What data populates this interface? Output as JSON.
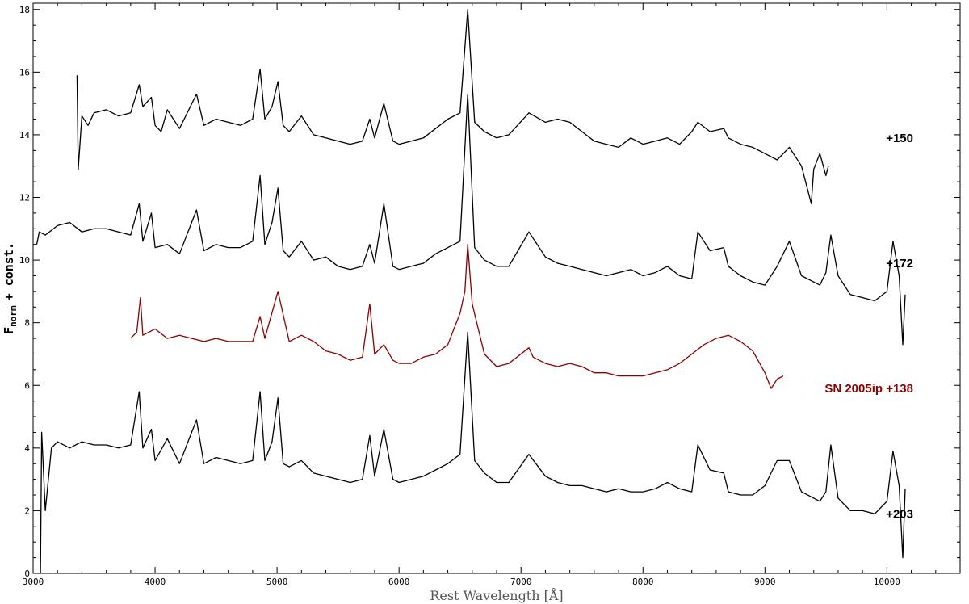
{
  "chart_data": {
    "type": "line",
    "xlabel": "Rest Wavelength [Å]",
    "ylabel_main": "F",
    "ylabel_sub": "norm",
    "ylabel_tail": "+ const.",
    "xlim": [
      3000,
      10600
    ],
    "ylim": [
      0,
      18.2
    ],
    "x_ticks": [
      3000,
      4000,
      5000,
      6000,
      7000,
      8000,
      9000,
      10000
    ],
    "y_ticks": [
      0,
      2,
      4,
      6,
      8,
      10,
      12,
      14,
      16,
      18
    ],
    "grid": false,
    "colors": {
      "black": "#000000",
      "comparison": "#8b0000"
    },
    "series": [
      {
        "name": "+150",
        "color": "#000000",
        "x": [
          3360,
          3370,
          3400,
          3450,
          3500,
          3600,
          3700,
          3800,
          3870,
          3900,
          3970,
          4000,
          4050,
          4100,
          4200,
          4340,
          4400,
          4500,
          4600,
          4700,
          4800,
          4861,
          4900,
          4959,
          5007,
          5050,
          5100,
          5200,
          5300,
          5400,
          5500,
          5600,
          5700,
          5760,
          5800,
          5876,
          5950,
          6000,
          6100,
          6200,
          6300,
          6400,
          6500,
          6563,
          6620,
          6700,
          6800,
          6900,
          7065,
          7200,
          7300,
          7400,
          7500,
          7600,
          7700,
          7800,
          7900,
          8000,
          8100,
          8200,
          8300,
          8400,
          8450,
          8550,
          8662,
          8700,
          8800,
          8900,
          9000,
          9100,
          9200,
          9300,
          9380,
          9400,
          9450,
          9500,
          9520
        ],
        "y": [
          15.9,
          12.9,
          14.6,
          14.3,
          14.7,
          14.8,
          14.6,
          14.7,
          15.6,
          14.9,
          15.2,
          14.3,
          14.1,
          14.8,
          14.2,
          15.3,
          14.3,
          14.5,
          14.4,
          14.3,
          14.5,
          16.1,
          14.5,
          14.9,
          15.7,
          14.3,
          14.1,
          14.6,
          14.0,
          13.9,
          13.8,
          13.7,
          13.8,
          14.5,
          13.9,
          15.0,
          13.8,
          13.7,
          13.8,
          13.9,
          14.2,
          14.5,
          14.7,
          18.0,
          14.4,
          14.1,
          13.9,
          14.0,
          14.7,
          14.4,
          14.5,
          14.4,
          14.1,
          13.8,
          13.7,
          13.6,
          13.9,
          13.7,
          13.8,
          13.9,
          13.7,
          14.1,
          14.4,
          14.1,
          14.2,
          13.9,
          13.7,
          13.6,
          13.4,
          13.2,
          13.6,
          13.0,
          11.8,
          12.9,
          13.4,
          12.7,
          13.0
        ]
      },
      {
        "name": "+172",
        "color": "#000000",
        "x": [
          3030,
          3050,
          3100,
          3200,
          3300,
          3400,
          3500,
          3600,
          3700,
          3800,
          3870,
          3900,
          3970,
          4000,
          4100,
          4200,
          4340,
          4400,
          4500,
          4600,
          4700,
          4800,
          4861,
          4900,
          4959,
          5007,
          5050,
          5100,
          5200,
          5300,
          5400,
          5500,
          5600,
          5700,
          5760,
          5800,
          5876,
          5950,
          6000,
          6100,
          6200,
          6300,
          6400,
          6500,
          6563,
          6620,
          6700,
          6800,
          6900,
          7065,
          7200,
          7300,
          7400,
          7500,
          7600,
          7700,
          7800,
          7900,
          8000,
          8100,
          8200,
          8300,
          8400,
          8450,
          8550,
          8662,
          8700,
          8800,
          8900,
          9000,
          9100,
          9200,
          9300,
          9400,
          9450,
          9500,
          9540,
          9600,
          9700,
          9800,
          9900,
          10000,
          10050,
          10100,
          10130,
          10150
        ],
        "y": [
          10.5,
          10.9,
          10.8,
          11.1,
          11.2,
          10.9,
          11.0,
          11.0,
          10.9,
          10.8,
          11.8,
          10.6,
          11.5,
          10.4,
          10.5,
          10.2,
          11.6,
          10.3,
          10.5,
          10.4,
          10.4,
          10.6,
          12.7,
          10.5,
          11.2,
          12.3,
          10.3,
          10.1,
          10.6,
          10.0,
          10.1,
          9.8,
          9.7,
          9.8,
          10.5,
          9.9,
          11.8,
          9.8,
          9.7,
          9.8,
          9.9,
          10.2,
          10.4,
          10.6,
          15.3,
          10.4,
          10.0,
          9.8,
          9.8,
          10.9,
          10.1,
          9.9,
          9.8,
          9.7,
          9.6,
          9.5,
          9.6,
          9.7,
          9.5,
          9.6,
          9.8,
          9.5,
          9.4,
          10.9,
          10.3,
          10.4,
          9.8,
          9.5,
          9.3,
          9.2,
          9.8,
          10.6,
          9.5,
          9.3,
          9.2,
          9.6,
          10.8,
          9.5,
          8.9,
          8.8,
          8.7,
          9.0,
          10.6,
          9.5,
          7.3,
          8.9
        ]
      },
      {
        "name": "SN 2005ip +138",
        "color": "#8b0000",
        "x": [
          3800,
          3850,
          3880,
          3900,
          4000,
          4100,
          4200,
          4300,
          4400,
          4500,
          4600,
          4700,
          4800,
          4861,
          4900,
          5007,
          5100,
          5200,
          5300,
          5400,
          5500,
          5600,
          5700,
          5760,
          5800,
          5876,
          5950,
          6000,
          6100,
          6200,
          6300,
          6400,
          6450,
          6500,
          6540,
          6563,
          6600,
          6650,
          6700,
          6800,
          6900,
          7065,
          7100,
          7200,
          7300,
          7400,
          7500,
          7600,
          7700,
          7800,
          7900,
          8000,
          8100,
          8200,
          8300,
          8400,
          8500,
          8600,
          8700,
          8800,
          8900,
          9000,
          9050,
          9100,
          9150
        ],
        "y": [
          7.5,
          7.7,
          8.8,
          7.6,
          7.8,
          7.5,
          7.6,
          7.5,
          7.4,
          7.5,
          7.4,
          7.4,
          7.4,
          8.2,
          7.5,
          9.0,
          7.4,
          7.6,
          7.4,
          7.1,
          7.0,
          6.8,
          6.9,
          8.6,
          7.0,
          7.3,
          6.8,
          6.7,
          6.7,
          6.9,
          7.0,
          7.3,
          7.8,
          8.3,
          9.0,
          10.5,
          8.6,
          7.8,
          7.0,
          6.6,
          6.7,
          7.2,
          6.9,
          6.7,
          6.6,
          6.7,
          6.6,
          6.4,
          6.4,
          6.3,
          6.3,
          6.3,
          6.4,
          6.5,
          6.7,
          7.0,
          7.3,
          7.5,
          7.6,
          7.4,
          7.1,
          6.4,
          5.9,
          6.2,
          6.3
        ]
      },
      {
        "name": "+203",
        "color": "#000000",
        "x": [
          3060,
          3070,
          3100,
          3150,
          3200,
          3300,
          3400,
          3500,
          3600,
          3700,
          3800,
          3870,
          3900,
          3970,
          4000,
          4100,
          4200,
          4340,
          4400,
          4500,
          4600,
          4700,
          4800,
          4861,
          4900,
          4959,
          5007,
          5050,
          5100,
          5200,
          5300,
          5400,
          5500,
          5600,
          5700,
          5760,
          5800,
          5876,
          5950,
          6000,
          6100,
          6200,
          6300,
          6400,
          6500,
          6563,
          6620,
          6700,
          6800,
          6900,
          7065,
          7200,
          7300,
          7400,
          7500,
          7600,
          7700,
          7800,
          7900,
          8000,
          8100,
          8200,
          8300,
          8400,
          8450,
          8550,
          8662,
          8700,
          8800,
          8900,
          9000,
          9100,
          9200,
          9300,
          9400,
          9450,
          9500,
          9540,
          9600,
          9700,
          9800,
          9900,
          10000,
          10050,
          10100,
          10130,
          10150
        ],
        "y": [
          0.0,
          4.5,
          2.0,
          4.0,
          4.2,
          4.0,
          4.2,
          4.1,
          4.1,
          4.0,
          4.1,
          5.8,
          4.0,
          4.6,
          3.6,
          4.3,
          3.5,
          4.9,
          3.5,
          3.7,
          3.6,
          3.5,
          3.6,
          5.8,
          3.6,
          4.2,
          5.6,
          3.5,
          3.4,
          3.6,
          3.2,
          3.1,
          3.0,
          2.9,
          3.0,
          4.4,
          3.1,
          4.6,
          3.0,
          2.9,
          3.0,
          3.1,
          3.3,
          3.5,
          3.8,
          7.7,
          3.6,
          3.2,
          2.9,
          2.9,
          3.8,
          3.1,
          2.9,
          2.8,
          2.8,
          2.7,
          2.6,
          2.7,
          2.6,
          2.6,
          2.7,
          2.9,
          2.7,
          2.6,
          4.1,
          3.3,
          3.2,
          2.6,
          2.5,
          2.5,
          2.8,
          3.6,
          3.6,
          2.6,
          2.4,
          2.3,
          2.6,
          4.1,
          2.4,
          2.0,
          2.0,
          1.9,
          2.3,
          3.9,
          2.8,
          0.5,
          2.7
        ]
      }
    ],
    "annotations": [
      {
        "text": "+150",
        "color": "#000000",
        "y": 13.9
      },
      {
        "text": "+172",
        "color": "#000000",
        "y": 9.9
      },
      {
        "text": "SN 2005ip +138",
        "color": "#8b0000",
        "y": 5.9
      },
      {
        "text": "+203",
        "color": "#000000",
        "y": 1.9
      }
    ]
  }
}
